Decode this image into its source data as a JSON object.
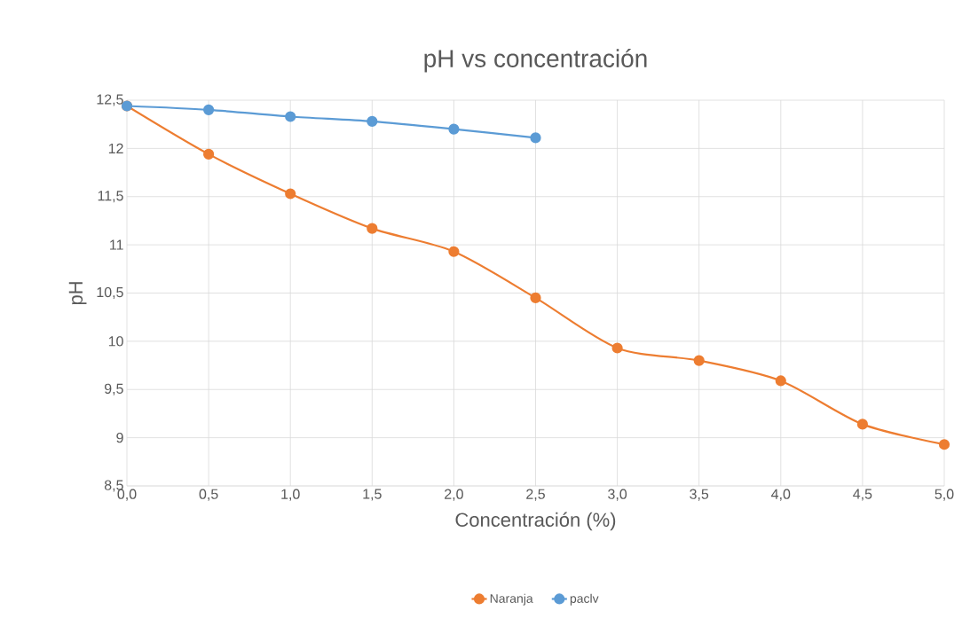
{
  "chart_data": {
    "type": "line",
    "title": "pH vs concentración",
    "xlabel": "Concentración (%)",
    "ylabel": "pH",
    "x": [
      0.0,
      0.5,
      1.0,
      1.5,
      2.0,
      2.5,
      3.0,
      3.5,
      4.0,
      4.5,
      5.0
    ],
    "series": [
      {
        "name": "Naranja",
        "color": "#ed7d31",
        "values": [
          12.44,
          11.94,
          11.53,
          11.17,
          10.93,
          10.45,
          9.93,
          9.8,
          9.59,
          9.14,
          8.93
        ]
      },
      {
        "name": "paclv",
        "color": "#5b9bd5",
        "values": [
          12.44,
          12.4,
          12.33,
          12.28,
          12.2,
          12.11,
          null,
          null,
          null,
          null,
          null
        ]
      }
    ],
    "xlim": [
      0,
      5
    ],
    "xticks": [
      {
        "value": 0,
        "label": "0,0"
      },
      {
        "value": 0.5,
        "label": "0,5"
      },
      {
        "value": 1,
        "label": "1,0"
      },
      {
        "value": 1.5,
        "label": "1,5"
      },
      {
        "value": 2,
        "label": "2,0"
      },
      {
        "value": 2.5,
        "label": "2,5"
      },
      {
        "value": 3,
        "label": "3,0"
      },
      {
        "value": 3.5,
        "label": "3,5"
      },
      {
        "value": 4,
        "label": "4,0"
      },
      {
        "value": 4.5,
        "label": "4,5"
      },
      {
        "value": 5,
        "label": "5,0"
      }
    ],
    "ylim": [
      8.5,
      12.5
    ],
    "yticks": [
      {
        "value": 8.5,
        "label": "8,5"
      },
      9,
      {
        "value": 9.5,
        "label": "9,5"
      },
      10,
      {
        "value": 10.5,
        "label": "10,5"
      },
      11,
      {
        "value": 11.5,
        "label": "11,5"
      },
      12,
      {
        "value": 12.5,
        "label": "12,5"
      }
    ],
    "grid": true,
    "legend": "bottom",
    "marker": "circle",
    "line_style": "solid"
  }
}
